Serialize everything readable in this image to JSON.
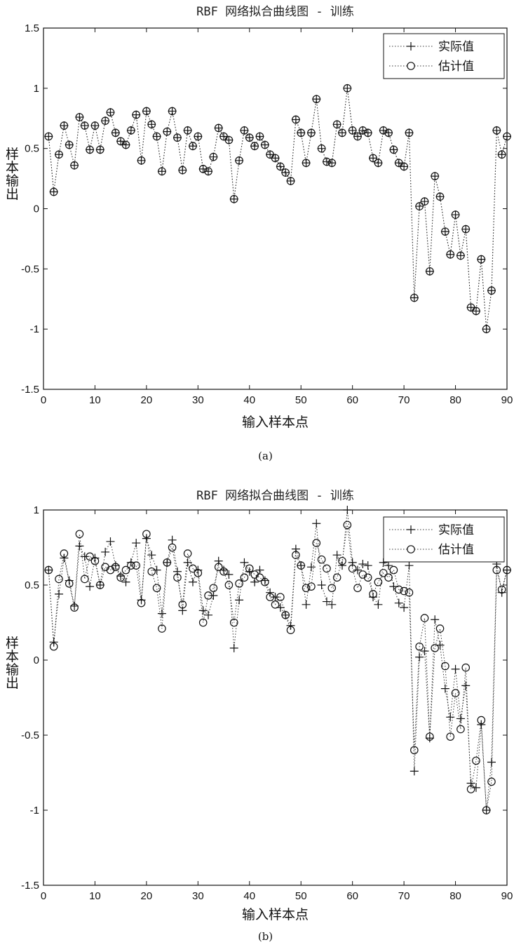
{
  "chart_data": [
    {
      "type": "line",
      "title": "RBF 网络拟合曲线图 - 训练",
      "xlabel": "输入样本点",
      "ylabel": "样本输出",
      "caption": "(a)",
      "xlim": [
        0,
        90
      ],
      "ylim": [
        -1.5,
        1.5
      ],
      "xticks": [
        0,
        10,
        20,
        30,
        40,
        50,
        60,
        70,
        80,
        90
      ],
      "yticks": [
        -1.5,
        -1,
        -0.5,
        0,
        0.5,
        1,
        1.5
      ],
      "xtick_labels": [
        "0",
        "10",
        "20",
        "30",
        "40",
        "50",
        "60",
        "70",
        "80",
        "90"
      ],
      "ytick_labels": [
        "-1.5",
        "-1",
        "-0.5",
        "0",
        "0.5",
        "1",
        "1.5"
      ],
      "legend_position": "top-right",
      "grid": false,
      "series": [
        {
          "name": "实际值",
          "marker": "plus",
          "values": [
            0.6,
            0.14,
            0.45,
            0.69,
            0.53,
            0.36,
            0.76,
            0.69,
            0.49,
            0.69,
            0.49,
            0.73,
            0.8,
            0.63,
            0.56,
            0.53,
            0.65,
            0.78,
            0.4,
            0.81,
            0.7,
            0.6,
            0.31,
            0.64,
            0.81,
            0.59,
            0.32,
            0.65,
            0.52,
            0.6,
            0.33,
            0.31,
            0.43,
            0.67,
            0.6,
            0.57,
            0.08,
            0.4,
            0.65,
            0.59,
            0.52,
            0.6,
            0.53,
            0.45,
            0.42,
            0.35,
            0.3,
            0.23,
            0.74,
            0.63,
            0.38,
            0.63,
            0.91,
            0.5,
            0.39,
            0.38,
            0.7,
            0.63,
            1.0,
            0.65,
            0.6,
            0.65,
            0.63,
            0.42,
            0.38,
            0.65,
            0.63,
            0.49,
            0.38,
            0.35,
            0.63,
            -0.74,
            0.02,
            0.06,
            -0.52,
            0.27,
            0.1,
            -0.19,
            -0.38,
            -0.05,
            -0.39,
            -0.17,
            -0.82,
            -0.85,
            -0.42,
            -1.0,
            -0.68,
            0.65,
            0.45,
            0.6
          ]
        },
        {
          "name": "估计值",
          "marker": "circle",
          "values": [
            0.6,
            0.14,
            0.45,
            0.69,
            0.53,
            0.36,
            0.76,
            0.69,
            0.49,
            0.69,
            0.49,
            0.73,
            0.8,
            0.63,
            0.56,
            0.53,
            0.65,
            0.78,
            0.4,
            0.81,
            0.7,
            0.6,
            0.31,
            0.64,
            0.81,
            0.59,
            0.32,
            0.65,
            0.52,
            0.6,
            0.33,
            0.31,
            0.43,
            0.67,
            0.6,
            0.57,
            0.08,
            0.4,
            0.65,
            0.59,
            0.52,
            0.6,
            0.53,
            0.45,
            0.42,
            0.35,
            0.3,
            0.23,
            0.74,
            0.63,
            0.38,
            0.63,
            0.91,
            0.5,
            0.39,
            0.38,
            0.7,
            0.63,
            1.0,
            0.65,
            0.6,
            0.65,
            0.63,
            0.42,
            0.38,
            0.65,
            0.63,
            0.49,
            0.38,
            0.35,
            0.63,
            -0.74,
            0.02,
            0.06,
            -0.52,
            0.27,
            0.1,
            -0.19,
            -0.38,
            -0.05,
            -0.39,
            -0.17,
            -0.82,
            -0.85,
            -0.42,
            -1.0,
            -0.68,
            0.65,
            0.45,
            0.6
          ]
        }
      ]
    },
    {
      "type": "line",
      "title": "RBF 网络拟合曲线图 - 训练",
      "xlabel": "输入样本点",
      "ylabel": "样本输出",
      "caption": "(b)",
      "xlim": [
        0,
        90
      ],
      "ylim": [
        -1.5,
        1
      ],
      "xticks": [
        0,
        10,
        20,
        30,
        40,
        50,
        60,
        70,
        80,
        90
      ],
      "yticks": [
        -1.5,
        -1,
        -0.5,
        0,
        0.5,
        1
      ],
      "xtick_labels": [
        "0",
        "10",
        "20",
        "30",
        "40",
        "50",
        "60",
        "70",
        "80",
        "90"
      ],
      "ytick_labels": [
        "-1.5",
        "-1",
        "-0.5",
        "0",
        "0.5",
        "1"
      ],
      "legend_position": "top-right",
      "grid": false,
      "series": [
        {
          "name": "实际值",
          "marker": "plus",
          "values": [
            0.6,
            0.12,
            0.44,
            0.68,
            0.53,
            0.36,
            0.76,
            0.69,
            0.49,
            0.68,
            0.5,
            0.72,
            0.79,
            0.63,
            0.56,
            0.52,
            0.65,
            0.78,
            0.4,
            0.81,
            0.7,
            0.6,
            0.31,
            0.65,
            0.8,
            0.59,
            0.33,
            0.65,
            0.52,
            0.6,
            0.33,
            0.3,
            0.43,
            0.66,
            0.6,
            0.57,
            0.08,
            0.4,
            0.65,
            0.59,
            0.52,
            0.6,
            0.53,
            0.45,
            0.42,
            0.35,
            0.3,
            0.23,
            0.74,
            0.63,
            0.37,
            0.62,
            0.91,
            0.5,
            0.39,
            0.37,
            0.7,
            0.63,
            1.0,
            0.65,
            0.6,
            0.64,
            0.63,
            0.42,
            0.37,
            0.65,
            0.63,
            0.49,
            0.38,
            0.35,
            0.63,
            -0.74,
            0.02,
            0.06,
            -0.52,
            0.27,
            0.1,
            -0.19,
            -0.38,
            -0.06,
            -0.39,
            -0.17,
            -0.82,
            -0.85,
            -0.43,
            -1.0,
            -0.68,
            0.64,
            0.45,
            0.6
          ]
        },
        {
          "name": "估计值",
          "marker": "circle",
          "values": [
            0.6,
            0.09,
            0.54,
            0.71,
            0.51,
            0.35,
            0.84,
            0.54,
            0.69,
            0.66,
            0.5,
            0.62,
            0.6,
            0.62,
            0.55,
            0.6,
            0.63,
            0.63,
            0.38,
            0.84,
            0.59,
            0.48,
            0.21,
            0.65,
            0.75,
            0.55,
            0.37,
            0.71,
            0.61,
            0.58,
            0.25,
            0.43,
            0.48,
            0.62,
            0.59,
            0.5,
            0.25,
            0.51,
            0.55,
            0.61,
            0.57,
            0.55,
            0.52,
            0.42,
            0.37,
            0.42,
            0.3,
            0.2,
            0.7,
            0.63,
            0.48,
            0.49,
            0.78,
            0.67,
            0.61,
            0.48,
            0.55,
            0.66,
            0.9,
            0.61,
            0.48,
            0.57,
            0.55,
            0.44,
            0.52,
            0.58,
            0.55,
            0.6,
            0.47,
            0.46,
            0.45,
            -0.6,
            0.09,
            0.28,
            -0.51,
            0.08,
            0.21,
            -0.04,
            -0.51,
            -0.22,
            -0.46,
            -0.05,
            -0.86,
            -0.67,
            -0.4,
            -1.0,
            -0.81,
            0.6,
            0.47,
            0.6
          ]
        }
      ]
    }
  ]
}
